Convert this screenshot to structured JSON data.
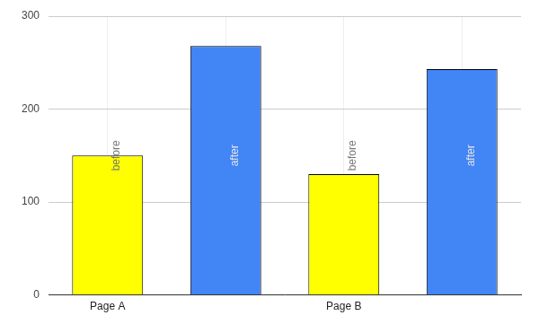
{
  "chart_data": {
    "type": "bar",
    "categories": [
      "Page A",
      null,
      "Page B",
      null
    ],
    "values": [
      150,
      268,
      130,
      243
    ],
    "colors": [
      "#ffff00",
      "#4285f4",
      "#ffff00",
      "#4285f4"
    ],
    "annotations": [
      "before",
      "after",
      "before",
      "after"
    ],
    "ylim": [
      0,
      300
    ],
    "yticks": [
      0,
      100,
      200,
      300
    ],
    "grid": true
  }
}
